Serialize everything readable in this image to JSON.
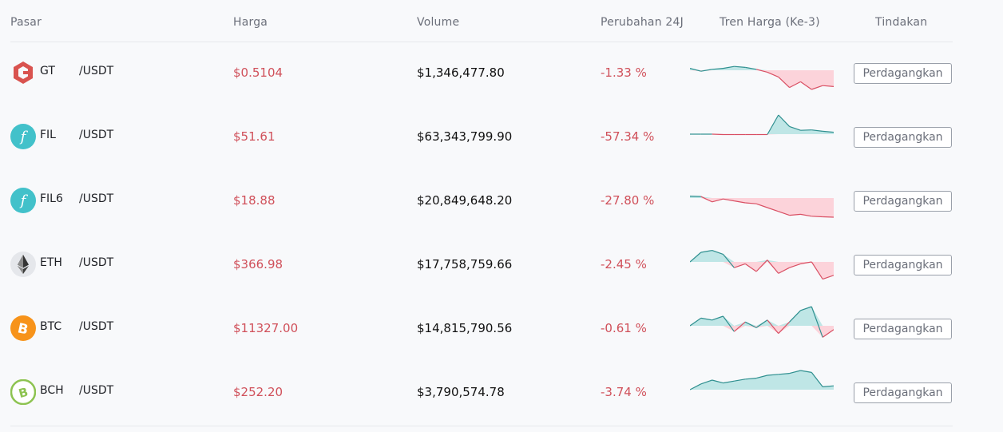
{
  "header": {
    "market": "Pasar",
    "price": "Harga",
    "volume": "Volume",
    "change": "Perubahan 24J",
    "trend": "Tren Harga (Ke-3)",
    "action": "Tindakan"
  },
  "rows": [
    {
      "symbol": "GT",
      "quote": "/USDT",
      "price": "$0.5104",
      "volume": "$1,346,477.80",
      "change": "-1.33 %",
      "action_label": "Perdagangkan",
      "icon": "gatetoken-icon",
      "icon_color": "#d9534f",
      "trend": [
        0.1,
        -0.05,
        0.05,
        0.1,
        0.2,
        0.15,
        0.05,
        -0.1,
        -0.35,
        -0.9,
        -0.6,
        -1.0,
        -0.8,
        -0.85
      ]
    },
    {
      "symbol": "FIL",
      "quote": "/USDT",
      "price": "$51.61",
      "volume": "$63,343,799.90",
      "change": "-57.34 %",
      "action_label": "Perdagangkan",
      "icon": "filecoin-icon",
      "icon_color": "#42c1ca",
      "trend": [
        0.0,
        0.0,
        0.0,
        -0.02,
        -0.02,
        -0.02,
        -0.02,
        -0.02,
        1.0,
        0.4,
        0.2,
        0.22,
        0.15,
        0.1
      ]
    },
    {
      "symbol": "FIL6",
      "quote": "/USDT",
      "price": "$18.88",
      "volume": "$20,849,648.20",
      "change": "-27.80 %",
      "action_label": "Perdagangkan",
      "icon": "filecoin-icon",
      "icon_color": "#42c1ca",
      "trend": [
        0.1,
        0.08,
        -0.2,
        -0.05,
        -0.15,
        -0.25,
        -0.3,
        -0.5,
        -0.7,
        -0.9,
        -0.85,
        -0.95,
        -0.98,
        -1.0
      ]
    },
    {
      "symbol": "ETH",
      "quote": "/USDT",
      "price": "$366.98",
      "volume": "$17,758,759.66",
      "change": "-2.45 %",
      "action_label": "Perdagangkan",
      "icon": "ethereum-icon",
      "icon_color": "#8a92b2",
      "trend": [
        0.0,
        0.5,
        0.6,
        0.4,
        -0.3,
        -0.1,
        -0.5,
        0.1,
        -0.6,
        -0.3,
        -0.1,
        0.0,
        -0.9,
        -0.7
      ]
    },
    {
      "symbol": "BTC",
      "quote": "/USDT",
      "price": "$11327.00",
      "volume": "$14,815,790.56",
      "change": "-0.61 %",
      "action_label": "Perdagangkan",
      "icon": "bitcoin-icon",
      "icon_color": "#f7931a",
      "trend": [
        0.0,
        0.4,
        0.3,
        0.5,
        -0.3,
        0.2,
        -0.1,
        0.3,
        -0.4,
        0.2,
        0.8,
        1.0,
        -0.6,
        -0.2
      ]
    },
    {
      "symbol": "BCH",
      "quote": "/USDT",
      "price": "$252.20",
      "volume": "$3,790,574.78",
      "change": "-3.74 %",
      "action_label": "Perdagangkan",
      "icon": "bitcoincash-icon",
      "icon_color": "#8dc351",
      "trend": [
        0.0,
        0.3,
        0.5,
        0.35,
        0.45,
        0.55,
        0.6,
        0.75,
        0.8,
        0.85,
        1.0,
        0.9,
        0.15,
        0.2
      ]
    }
  ],
  "colors": {
    "up_fill": "#bfe6e6",
    "up_line": "#2e8f8f",
    "down_fill": "#fcd3da",
    "down_line": "#d94f63",
    "negative_text": "#d0505a"
  }
}
